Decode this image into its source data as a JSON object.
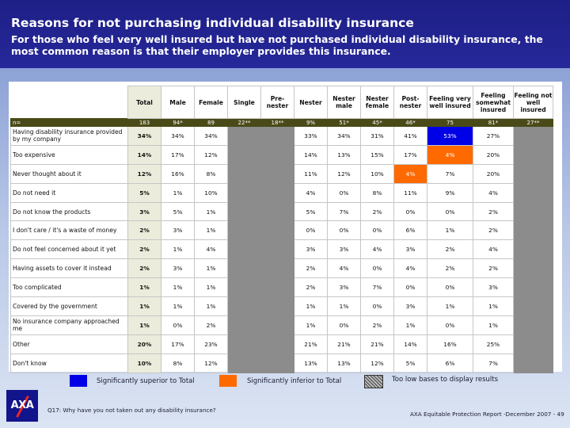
{
  "header": {
    "title": "Reasons for not purchasing individual disability insurance",
    "subtitle": "For those who feel very well insured but have not purchased individual disability insurance, the most common reason is that their employer provides this insurance."
  },
  "table": {
    "columns": [
      "Total",
      "Male",
      "Female",
      "Single",
      "Pre-\nnester",
      "Nester",
      "Nester\nmale",
      "Nester\nfemale",
      "Post-\nnester",
      "Feeling very\nwell insured",
      "Feeling\nsomewhat\ninsured",
      "Feeling not\nwell insured"
    ],
    "n_label": "n=",
    "n_values": [
      "183",
      "94*",
      "89",
      "22**",
      "18**",
      "9%",
      "51*",
      "45*",
      "46*",
      "75",
      "81*",
      "27**"
    ],
    "rows": [
      {
        "label": "Having disability insurance provided by my company",
        "values": [
          "34%",
          "34%",
          "34%",
          "",
          "",
          "33%",
          "34%",
          "31%",
          "41%",
          "53%",
          "27%",
          ""
        ]
      },
      {
        "label": "Too expensive",
        "values": [
          "14%",
          "17%",
          "12%",
          "",
          "",
          "14%",
          "13%",
          "15%",
          "17%",
          "4%",
          "20%",
          ""
        ]
      },
      {
        "label": "Never thought about it",
        "values": [
          "12%",
          "16%",
          "8%",
          "",
          "",
          "11%",
          "12%",
          "10%",
          "4%",
          "7%",
          "20%",
          ""
        ]
      },
      {
        "label": "Do not need it",
        "values": [
          "5%",
          "1%",
          "10%",
          "",
          "",
          "4%",
          "0%",
          "8%",
          "11%",
          "9%",
          "4%",
          ""
        ]
      },
      {
        "label": "Do not know the products",
        "values": [
          "3%",
          "5%",
          "1%",
          "",
          "",
          "5%",
          "7%",
          "2%",
          "0%",
          "0%",
          "2%",
          ""
        ]
      },
      {
        "label": "I don't care / it's a waste of money",
        "values": [
          "2%",
          "3%",
          "1%",
          "",
          "",
          "0%",
          "0%",
          "0%",
          "6%",
          "1%",
          "2%",
          ""
        ]
      },
      {
        "label": "Do not feel concerned about it yet",
        "values": [
          "2%",
          "1%",
          "4%",
          "",
          "",
          "3%",
          "3%",
          "4%",
          "3%",
          "2%",
          "4%",
          ""
        ]
      },
      {
        "label": "Having assets to cover it instead",
        "values": [
          "2%",
          "3%",
          "1%",
          "",
          "",
          "2%",
          "4%",
          "0%",
          "4%",
          "2%",
          "2%",
          ""
        ]
      },
      {
        "label": "Too complicated",
        "values": [
          "1%",
          "1%",
          "1%",
          "",
          "",
          "2%",
          "3%",
          "7%",
          "0%",
          "0%",
          "3%",
          ""
        ]
      },
      {
        "label": "Covered by the government",
        "values": [
          "1%",
          "1%",
          "1%",
          "",
          "",
          "1%",
          "1%",
          "0%",
          "3%",
          "1%",
          "1%",
          ""
        ]
      },
      {
        "label": "No insurance company approached me",
        "values": [
          "1%",
          "0%",
          "2%",
          "",
          "",
          "1%",
          "0%",
          "2%",
          "1%",
          "0%",
          "1%",
          ""
        ]
      },
      {
        "label": "Other",
        "values": [
          "20%",
          "17%",
          "23%",
          "",
          "",
          "21%",
          "21%",
          "21%",
          "14%",
          "16%",
          "25%",
          ""
        ]
      },
      {
        "label": "Don't know",
        "values": [
          "10%",
          "8%",
          "12%",
          "",
          "",
          "13%",
          "13%",
          "12%",
          "5%",
          "6%",
          "7%",
          ""
        ]
      }
    ],
    "low_base_columns": [
      3,
      4,
      11
    ],
    "highlights": {
      "superior": [
        [
          0,
          9
        ]
      ],
      "inferior": [
        [
          1,
          9
        ],
        [
          2,
          8
        ]
      ]
    }
  },
  "legend": {
    "superior": "Significantly superior to Total",
    "inferior": "Significantly inferior to Total",
    "low_base": "Too low bases to display results"
  },
  "footer": {
    "question": "Q17: Why have you not taken out any disability insurance?",
    "source": "AXA Equitable Protection Report -December 2007 - 49",
    "logo_text": "AXA"
  },
  "colors": {
    "header_bg": "#1e1f86",
    "superior": "#0000e6",
    "inferior": "#ff6a00",
    "low_base": "#8c8c8c",
    "n_row": "#4a4a18",
    "total_col": "#ececdc"
  }
}
